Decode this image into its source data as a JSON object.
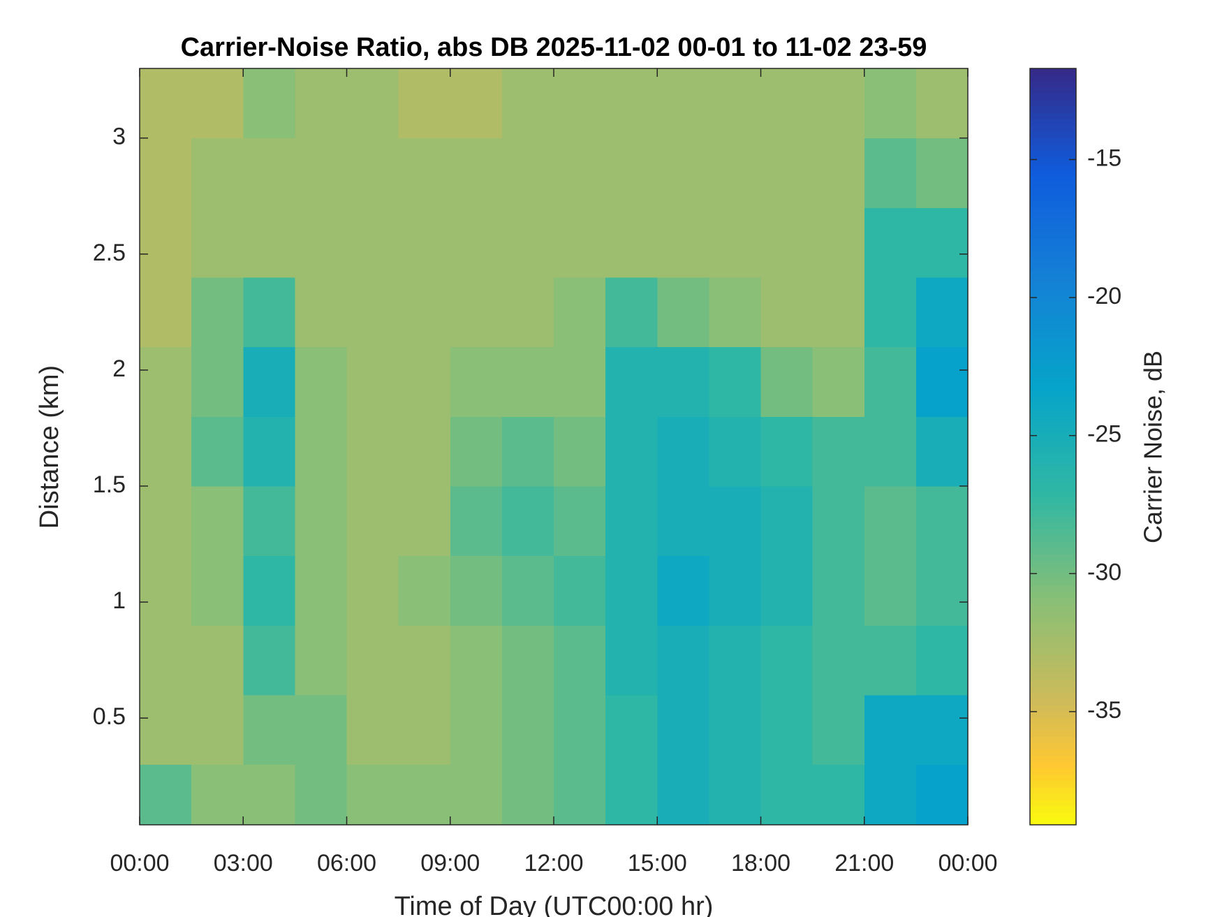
{
  "chart_data": {
    "type": "heatmap",
    "title": "Carrier-Noise Ratio, abs DB 2025-11-02 00-01 to 11-02 23-59",
    "xlabel": "Time of Day (UTC00:00 hr)",
    "ylabel": "Distance (km)",
    "colorbar_label": "Carrier Noise, dB",
    "colormap": "parula",
    "colormap_reversed": true,
    "xbins": [
      0,
      1.5,
      3,
      4.5,
      6,
      7.5,
      9,
      10.5,
      12,
      13.5,
      15,
      16.5,
      18,
      19.5,
      21,
      22.5,
      24
    ],
    "ybins": [
      0.04,
      0.3,
      0.6,
      0.9,
      1.2,
      1.5,
      1.8,
      2.1,
      2.4,
      2.7,
      3.0,
      3.3
    ],
    "z": [
      [
        -29,
        -31,
        -31,
        -30,
        -31,
        -31,
        -31,
        -30,
        -29,
        -27,
        -25,
        -26,
        -27,
        -27,
        -24,
        -23
      ],
      [
        -32,
        -32,
        -30,
        -30,
        -32,
        -32,
        -31,
        -30,
        -29,
        -27,
        -25,
        -26,
        -27,
        -28,
        -24,
        -24
      ],
      [
        -32,
        -32,
        -28,
        -31,
        -32,
        -32,
        -31,
        -30,
        -29,
        -26,
        -25,
        -26,
        -27,
        -28,
        -28,
        -27
      ],
      [
        -32,
        -31,
        -27,
        -31,
        -32,
        -31,
        -30,
        -29,
        -28,
        -26,
        -24,
        -25,
        -26,
        -28,
        -29,
        -28
      ],
      [
        -32,
        -31,
        -28,
        -31,
        -32,
        -32,
        -29,
        -28,
        -29,
        -26,
        -25,
        -25,
        -26,
        -28,
        -29,
        -28
      ],
      [
        -32,
        -29,
        -26,
        -31,
        -32,
        -32,
        -30,
        -29,
        -30,
        -26,
        -25,
        -26,
        -27,
        -28,
        -28,
        -25
      ],
      [
        -32,
        -30,
        -25,
        -31,
        -32,
        -32,
        -31,
        -31,
        -31,
        -26,
        -26,
        -27,
        -30,
        -31,
        -28,
        -23
      ],
      [
        -33,
        -30,
        -28,
        -32,
        -32,
        -32,
        -32,
        -32,
        -31,
        -28,
        -30,
        -31,
        -32,
        -32,
        -27,
        -24
      ],
      [
        -33,
        -32,
        -32,
        -32,
        -32,
        -32,
        -32,
        -32,
        -32,
        -32,
        -32,
        -32,
        -32,
        -32,
        -27,
        -27
      ],
      [
        -33,
        -32,
        -32,
        -32,
        -32,
        -32,
        -32,
        -32,
        -32,
        -32,
        -32,
        -32,
        -32,
        -32,
        -29,
        -30
      ],
      [
        -33,
        -33,
        -31,
        -32,
        -32,
        -33,
        -33,
        -32,
        -32,
        -32,
        -32,
        -32,
        -32,
        -32,
        -31,
        -32
      ]
    ],
    "xlim": [
      0,
      24
    ],
    "ylim": [
      0.04,
      3.3
    ],
    "xticks": [
      {
        "value": 0,
        "label": "00:00"
      },
      {
        "value": 3,
        "label": "03:00"
      },
      {
        "value": 6,
        "label": "06:00"
      },
      {
        "value": 9,
        "label": "09:00"
      },
      {
        "value": 12,
        "label": "12:00"
      },
      {
        "value": 15,
        "label": "15:00"
      },
      {
        "value": 18,
        "label": "18:00"
      },
      {
        "value": 21,
        "label": "21:00"
      },
      {
        "value": 24,
        "label": "00:00"
      }
    ],
    "yticks": [
      0.5,
      1,
      1.5,
      2,
      2.5,
      3
    ],
    "clim": [
      -39.1,
      -11.7
    ],
    "cticks": [
      -35,
      -30,
      -25,
      -20,
      -15
    ]
  }
}
